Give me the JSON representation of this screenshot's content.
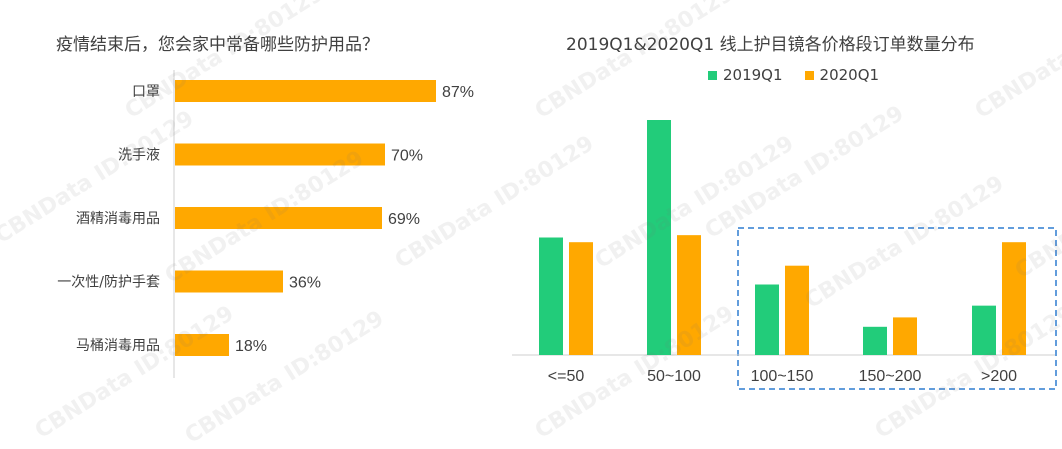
{
  "colors": {
    "orange": "#FFA800",
    "green": "#22CC7A",
    "axis": "#CFCFCF",
    "text": "#404040",
    "highlight": "#2E7DD1"
  },
  "watermark_text": "CBNData ID:80129",
  "chart_data": [
    {
      "type": "bar",
      "orientation": "horizontal",
      "title": "疫情结束后，您会家中常备哪些防护用品？",
      "categories": [
        "口罩",
        "洗手液",
        "酒精消毒用品",
        "一次性/防护手套",
        "马桶消毒用品"
      ],
      "values": [
        87,
        70,
        69,
        36,
        18
      ],
      "value_labels": [
        "87%",
        "70%",
        "69%",
        "36%",
        "18%"
      ],
      "unit": "%",
      "xlim": [
        0,
        100
      ],
      "grid": false
    },
    {
      "type": "bar",
      "orientation": "vertical",
      "title": "2019Q1&2020Q1 线上护目镜各价格段订单数量分布",
      "categories": [
        "<=50",
        "50~100",
        "100~150",
        "150~200",
        ">200"
      ],
      "series": [
        {
          "name": "2019Q1",
          "values": [
            50,
            100,
            30,
            12,
            21
          ]
        },
        {
          "name": "2020Q1",
          "values": [
            48,
            51,
            38,
            16,
            48
          ]
        }
      ],
      "ylim": [
        0,
        100
      ],
      "legend": "top",
      "highlight_categories": [
        "100~150",
        "150~200",
        ">200"
      ],
      "grid": false
    }
  ]
}
